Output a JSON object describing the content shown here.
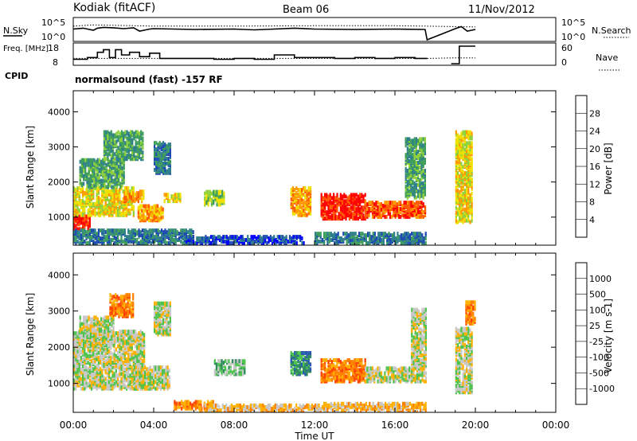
{
  "header": {
    "title": "Kodiak (fitACF)",
    "beam": "Beam 06",
    "date": "11/Nov/2012",
    "cpid_label": "CPID",
    "cpid_value": "normalsound (fast) -157 RF"
  },
  "colors": {
    "power": [
      "#0000ff",
      "#1c4ab2",
      "#2f7f8c",
      "#3f9f5a",
      "#8fd13a",
      "#f0e000",
      "#ff9a00",
      "#ff5a00",
      "#ff0000"
    ],
    "velocity": [
      "#ff0000",
      "#ff4000",
      "#ff8000",
      "#ffb000",
      "#c8c8c8",
      "#4ec34e",
      "#2f8c5c",
      "#2a5ab0",
      "#1f3ccc"
    ]
  },
  "chart_data": [
    {
      "type": "line",
      "name": "aux-top",
      "left_axis_label": "N.Sky",
      "right_axis_label": "N.Search",
      "left_ticks": [
        "10^5",
        "10^0"
      ],
      "right_ticks": [
        "10^5",
        "10^0"
      ],
      "series_left": {
        "x": [
          0.0,
          0.5,
          1.0,
          1.2,
          1.5,
          2.0,
          2.5,
          3.0,
          3.3,
          3.8,
          4.0,
          5.0,
          6.0,
          8.0,
          9.0,
          10.0,
          11.0,
          12.0,
          14.0,
          16.0,
          17.5,
          17.6,
          19.0,
          19.3,
          19.6,
          20.0
        ],
        "y": [
          2.6,
          2.8,
          2.3,
          2.8,
          3.0,
          2.9,
          2.7,
          2.9,
          2.1,
          2.6,
          2.7,
          2.6,
          2.5,
          2.6,
          2.4,
          2.6,
          2.8,
          2.6,
          2.5,
          2.6,
          2.5,
          0.0,
          2.7,
          3.2,
          2.1,
          2.5
        ]
      },
      "series_right": {
        "x": [
          0.0,
          1.0,
          2.0,
          4.0,
          8.0,
          12.0,
          16.0,
          17.5,
          19.0,
          20.0
        ],
        "y": [
          3.3,
          3.6,
          3.5,
          3.3,
          3.3,
          3.4,
          3.4,
          3.3,
          3.2,
          3.1
        ]
      }
    },
    {
      "type": "line",
      "name": "aux-freq",
      "left_axis_label": "Freq. [MHz]",
      "right_axis_label": "Nave",
      "left_ticks": [
        "18",
        "8"
      ],
      "right_ticks": [
        "60",
        "0"
      ],
      "freq": {
        "x": [
          0.0,
          0.7,
          1.2,
          1.5,
          1.8,
          2.1,
          2.4,
          2.8,
          3.3,
          3.8,
          4.3,
          6.0,
          7.0,
          8.0,
          9.0,
          10.0,
          11.0,
          12.0,
          13.0,
          14.0,
          15.0,
          16.0,
          17.0,
          17.6
        ],
        "y": [
          10.5,
          11.5,
          14.5,
          16.0,
          11.5,
          16.0,
          13.0,
          14.5,
          12.0,
          14.0,
          11.0,
          11.0,
          10.5,
          11.0,
          10.5,
          13.0,
          11.5,
          11.5,
          11.0,
          11.5,
          11.0,
          11.5,
          11.0,
          11.0
        ]
      },
      "nave": {
        "x": [
          0.0,
          17.6,
          19.0,
          20.0
        ],
        "y": [
          18,
          18,
          20,
          20
        ]
      },
      "freq_gap": [
        17.6,
        18.8
      ],
      "freq_late": {
        "x": [
          18.8,
          19.2,
          20.0
        ],
        "y": [
          8,
          18,
          18
        ]
      }
    },
    {
      "type": "heatmap",
      "name": "power",
      "title": "",
      "xlabel": "Time UT",
      "ylabel": "Slant Range [km]",
      "x_ticks": [
        "00:00",
        "04:00",
        "08:00",
        "12:00",
        "16:00",
        "20:00",
        "00:00"
      ],
      "y_ticks": [
        1000,
        2000,
        3000,
        4000
      ],
      "xlim": [
        0,
        24
      ],
      "ylim": [
        200,
        4600
      ],
      "colorbar_label": "Power [dB]",
      "colorbar_ticks": [
        4,
        8,
        12,
        16,
        20,
        24,
        28
      ],
      "blobs": [
        {
          "t0": 0.0,
          "t1": 0.8,
          "r0": 600,
          "r1": 1000,
          "level": 8
        },
        {
          "t0": 0.0,
          "t1": 3.0,
          "r0": 1000,
          "r1": 1800,
          "level": 5
        },
        {
          "t0": 0.3,
          "t1": 2.5,
          "r0": 1800,
          "r1": 2600,
          "level": 3
        },
        {
          "t0": 1.5,
          "t1": 3.5,
          "r0": 2600,
          "r1": 3400,
          "level": 3
        },
        {
          "t0": 2.5,
          "t1": 3.5,
          "r0": 1400,
          "r1": 1700,
          "level": 6
        },
        {
          "t0": 3.2,
          "t1": 4.5,
          "r0": 850,
          "r1": 1300,
          "level": 6
        },
        {
          "t0": 4.0,
          "t1": 4.8,
          "r0": 2200,
          "r1": 3100,
          "level": 2
        },
        {
          "t0": 4.5,
          "t1": 5.3,
          "r0": 1400,
          "r1": 1600,
          "level": 5
        },
        {
          "t0": 0.0,
          "t1": 6.0,
          "r0": 200,
          "r1": 600,
          "level": 2
        },
        {
          "t0": 5.5,
          "t1": 11.5,
          "r0": 200,
          "r1": 420,
          "level": 1
        },
        {
          "t0": 10.8,
          "t1": 11.8,
          "r0": 1000,
          "r1": 1800,
          "level": 6
        },
        {
          "t0": 12.3,
          "t1": 14.5,
          "r0": 900,
          "r1": 1600,
          "level": 8
        },
        {
          "t0": 14.5,
          "t1": 17.5,
          "r0": 950,
          "r1": 1400,
          "level": 7
        },
        {
          "t0": 16.5,
          "t1": 17.5,
          "r0": 1500,
          "r1": 3200,
          "level": 3
        },
        {
          "t0": 12.0,
          "t1": 17.5,
          "r0": 200,
          "r1": 500,
          "level": 2
        },
        {
          "t0": 19.0,
          "t1": 19.8,
          "r0": 800,
          "r1": 3400,
          "level": 5
        },
        {
          "t0": 6.5,
          "t1": 7.5,
          "r0": 1300,
          "r1": 1700,
          "level": 4
        }
      ]
    },
    {
      "type": "heatmap",
      "name": "velocity",
      "title": "",
      "xlabel": "Time UT",
      "ylabel": "Slant Range [km]",
      "x_ticks": [
        "00:00",
        "04:00",
        "08:00",
        "12:00",
        "16:00",
        "20:00",
        "00:00"
      ],
      "y_ticks": [
        1000,
        2000,
        3000,
        4000
      ],
      "xlim": [
        0,
        24
      ],
      "ylim": [
        200,
        4600
      ],
      "colorbar_label": "Velocity [m s-1]",
      "colorbar_ticks": [
        -1000,
        -500,
        -100,
        -25,
        25,
        100,
        500,
        1000
      ],
      "blobs": [
        {
          "t0": 0.0,
          "t1": 3.5,
          "r0": 800,
          "r1": 2400,
          "level": 4
        },
        {
          "t0": 0.3,
          "t1": 2.0,
          "r0": 2000,
          "r1": 2800,
          "level": 4
        },
        {
          "t0": 1.8,
          "t1": 3.0,
          "r0": 2800,
          "r1": 3400,
          "level": 2
        },
        {
          "t0": 3.0,
          "t1": 4.8,
          "r0": 800,
          "r1": 1400,
          "level": 4
        },
        {
          "t0": 4.0,
          "t1": 4.8,
          "r0": 2300,
          "r1": 3200,
          "level": 4
        },
        {
          "t0": 5.0,
          "t1": 7.0,
          "r0": 250,
          "r1": 450,
          "level": 2
        },
        {
          "t0": 6.0,
          "t1": 12.0,
          "r0": 200,
          "r1": 380,
          "level": 3
        },
        {
          "t0": 10.8,
          "t1": 11.8,
          "r0": 1200,
          "r1": 1800,
          "level": 6
        },
        {
          "t0": 12.3,
          "t1": 14.5,
          "r0": 1000,
          "r1": 1600,
          "level": 2
        },
        {
          "t0": 14.5,
          "t1": 16.8,
          "r0": 1000,
          "r1": 1400,
          "level": 4
        },
        {
          "t0": 16.8,
          "t1": 17.5,
          "r0": 1000,
          "r1": 3000,
          "level": 4
        },
        {
          "t0": 12.0,
          "t1": 17.5,
          "r0": 200,
          "r1": 420,
          "level": 3
        },
        {
          "t0": 19.0,
          "t1": 19.8,
          "r0": 700,
          "r1": 2500,
          "level": 4
        },
        {
          "t0": 19.5,
          "t1": 20.0,
          "r0": 2600,
          "r1": 3200,
          "level": 2
        },
        {
          "t0": 7.0,
          "t1": 8.5,
          "r0": 1200,
          "r1": 1600,
          "level": 5
        }
      ]
    }
  ]
}
